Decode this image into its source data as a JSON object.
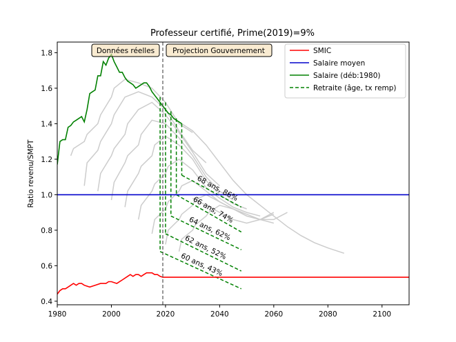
{
  "chart_data": {
    "type": "line",
    "title": "Professeur certifié, Prime(2019)=9%",
    "xlabel": "",
    "ylabel": "Ratio revenu/SMPT",
    "xlim": [
      1980,
      2110
    ],
    "ylim": [
      0.38,
      1.86
    ],
    "xticks": [
      1980,
      2000,
      2020,
      2040,
      2060,
      2080,
      2100
    ],
    "yticks": [
      0.4,
      0.6,
      0.8,
      1.0,
      1.2,
      1.4,
      1.6,
      1.8
    ],
    "grid": false,
    "legend_position": "top-right",
    "legend": [
      {
        "label": "SMIC",
        "color": "#ff0000",
        "style": "solid"
      },
      {
        "label": "Salaire moyen",
        "color": "#0000cc",
        "style": "solid"
      },
      {
        "label": "Salaire (déb:1980)",
        "color": "#008000",
        "style": "solid"
      },
      {
        "label": "Retraite (âge, tx remp)",
        "color": "#008000",
        "style": "dashed"
      }
    ],
    "annotations": {
      "left_box": "Données réelles",
      "right_box": "Projection Gouvernement",
      "vline_x": 2019
    },
    "series": [
      {
        "name": "SMIC",
        "color": "#ff0000",
        "x": [
          1980,
          1981,
          1982,
          1983,
          1984,
          1985,
          1986,
          1987,
          1988,
          1989,
          1990,
          1992,
          1994,
          1996,
          1997,
          1998,
          1999,
          2000,
          2002,
          2004,
          2006,
          2007,
          2008,
          2009,
          2010,
          2011,
          2012,
          2013,
          2014,
          2015,
          2016,
          2017,
          2018,
          2019,
          2110
        ],
        "y": [
          0.44,
          0.46,
          0.47,
          0.47,
          0.48,
          0.49,
          0.5,
          0.49,
          0.5,
          0.5,
          0.49,
          0.48,
          0.49,
          0.5,
          0.5,
          0.5,
          0.51,
          0.51,
          0.5,
          0.52,
          0.54,
          0.55,
          0.54,
          0.55,
          0.55,
          0.54,
          0.55,
          0.56,
          0.56,
          0.56,
          0.55,
          0.55,
          0.54,
          0.535,
          0.535
        ]
      },
      {
        "name": "Salaire moyen",
        "color": "#0000cc",
        "x": [
          1980,
          2110
        ],
        "y": [
          1.0,
          1.0
        ]
      },
      {
        "name": "Salaire (déb:1980)",
        "color": "#008000",
        "x": [
          1980,
          1981,
          1982,
          1983,
          1984,
          1985,
          1986,
          1987,
          1988,
          1989,
          1990,
          1991,
          1992,
          1993,
          1994,
          1995,
          1996,
          1997,
          1998,
          1999,
          2000,
          2001,
          2002,
          2003,
          2004,
          2005,
          2006,
          2007,
          2008,
          2009,
          2010,
          2011,
          2012,
          2013,
          2014,
          2015,
          2016,
          2017,
          2018,
          2019,
          2020,
          2021,
          2022,
          2023,
          2024,
          2025,
          2026
        ],
        "y": [
          1.17,
          1.3,
          1.31,
          1.31,
          1.38,
          1.39,
          1.41,
          1.42,
          1.43,
          1.44,
          1.41,
          1.48,
          1.57,
          1.58,
          1.59,
          1.67,
          1.67,
          1.75,
          1.73,
          1.77,
          1.79,
          1.75,
          1.72,
          1.69,
          1.69,
          1.66,
          1.64,
          1.63,
          1.62,
          1.6,
          1.61,
          1.62,
          1.63,
          1.63,
          1.61,
          1.58,
          1.56,
          1.54,
          1.52,
          1.5,
          1.48,
          1.46,
          1.45,
          1.43,
          1.42,
          1.41,
          1.4
        ]
      }
    ],
    "background_curves": [
      {
        "x": [
          1985,
          1986,
          1990,
          1991,
          1995,
          1996,
          2000,
          2001,
          2005,
          2010,
          2015,
          2020,
          2025,
          2030
        ],
        "y": [
          1.22,
          1.26,
          1.3,
          1.34,
          1.4,
          1.45,
          1.55,
          1.6,
          1.65,
          1.63,
          1.6,
          1.52,
          1.4,
          1.35
        ]
      },
      {
        "x": [
          1990,
          1991,
          1995,
          1996,
          2000,
          2001,
          2005,
          2010,
          2015,
          2020,
          2025,
          2030,
          2035
        ],
        "y": [
          1.05,
          1.18,
          1.25,
          1.3,
          1.4,
          1.45,
          1.55,
          1.58,
          1.55,
          1.48,
          1.36,
          1.25,
          1.18
        ]
      },
      {
        "x": [
          1995,
          1996,
          2000,
          2001,
          2005,
          2006,
          2010,
          2015,
          2020,
          2025,
          2030,
          2035,
          2040
        ],
        "y": [
          1.02,
          1.12,
          1.22,
          1.26,
          1.34,
          1.4,
          1.48,
          1.52,
          1.45,
          1.35,
          1.24,
          1.12,
          1.05
        ]
      },
      {
        "x": [
          2000,
          2001,
          2005,
          2006,
          2010,
          2011,
          2015,
          2020,
          2025,
          2030,
          2035,
          2040,
          2045
        ],
        "y": [
          0.97,
          1.07,
          1.18,
          1.22,
          1.28,
          1.34,
          1.42,
          1.4,
          1.32,
          1.22,
          1.1,
          1.02,
          0.97
        ]
      },
      {
        "x": [
          2005,
          2006,
          2010,
          2011,
          2015,
          2016,
          2020,
          2025,
          2030,
          2035,
          2040,
          2045,
          2050
        ],
        "y": [
          0.93,
          1.02,
          1.12,
          1.16,
          1.22,
          1.28,
          1.33,
          1.28,
          1.2,
          1.08,
          1.0,
          0.95,
          0.92
        ]
      },
      {
        "x": [
          2010,
          2011,
          2015,
          2016,
          2020,
          2021,
          2025,
          2030,
          2035,
          2040,
          2045,
          2050,
          2055
        ],
        "y": [
          0.86,
          0.94,
          1.02,
          1.06,
          1.12,
          1.16,
          1.2,
          1.14,
          1.04,
          0.98,
          0.93,
          0.9,
          0.88
        ]
      },
      {
        "x": [
          2015,
          2016,
          2020,
          2021,
          2025,
          2026,
          2030,
          2035,
          2040,
          2045,
          2050,
          2055,
          2060
        ],
        "y": [
          0.78,
          0.86,
          0.92,
          0.96,
          1.02,
          1.05,
          1.08,
          1.02,
          0.96,
          0.92,
          0.88,
          0.86,
          0.84
        ]
      },
      {
        "x": [
          2020,
          2021,
          2025,
          2026,
          2030,
          2031,
          2035,
          2040,
          2045,
          2050,
          2055,
          2060,
          2065
        ],
        "y": [
          0.72,
          0.8,
          0.86,
          0.89,
          0.94,
          0.97,
          1.0,
          0.96,
          0.92,
          0.89,
          0.86,
          0.86,
          0.9
        ]
      },
      {
        "x": [
          2025,
          2026,
          2030,
          2031,
          2035,
          2036,
          2040,
          2045,
          2050,
          2055,
          2060
        ],
        "y": [
          0.68,
          0.75,
          0.8,
          0.83,
          0.88,
          0.9,
          0.94,
          0.92,
          0.88,
          0.86,
          0.9
        ]
      },
      {
        "x": [
          2030,
          2035,
          2040,
          2045,
          2050,
          2055,
          2060
        ],
        "y": [
          0.98,
          0.94,
          0.9,
          0.86,
          0.84,
          0.86,
          0.89
        ]
      },
      {
        "x": [
          2026,
          2030,
          2035,
          2040,
          2045,
          2050,
          2055,
          2060,
          2065,
          2070,
          2075,
          2080,
          2086
        ],
        "y": [
          1.4,
          1.36,
          1.28,
          1.18,
          1.08,
          1.0,
          0.94,
          0.88,
          0.82,
          0.77,
          0.73,
          0.7,
          0.67
        ]
      }
    ],
    "retraite_lines": [
      {
        "label": "60 ans, 43%",
        "x": [
          2018,
          2048
        ],
        "y": [
          0.68,
          0.47
        ],
        "drop_from": 1.55
      },
      {
        "label": "62 ans, 52%",
        "x": [
          2020,
          2048
        ],
        "y": [
          0.78,
          0.57
        ],
        "drop_from": 1.52
      },
      {
        "label": "64 ans, 62%",
        "x": [
          2022,
          2048
        ],
        "y": [
          0.88,
          0.69
        ],
        "drop_from": 1.47
      },
      {
        "label": "66 ans, 74%",
        "x": [
          2024,
          2048
        ],
        "y": [
          1.0,
          0.79
        ],
        "drop_from": 1.43
      },
      {
        "label": "68 ans, 86%",
        "x": [
          2026,
          2048
        ],
        "y": [
          1.11,
          0.93
        ],
        "drop_from": 1.4
      }
    ]
  }
}
